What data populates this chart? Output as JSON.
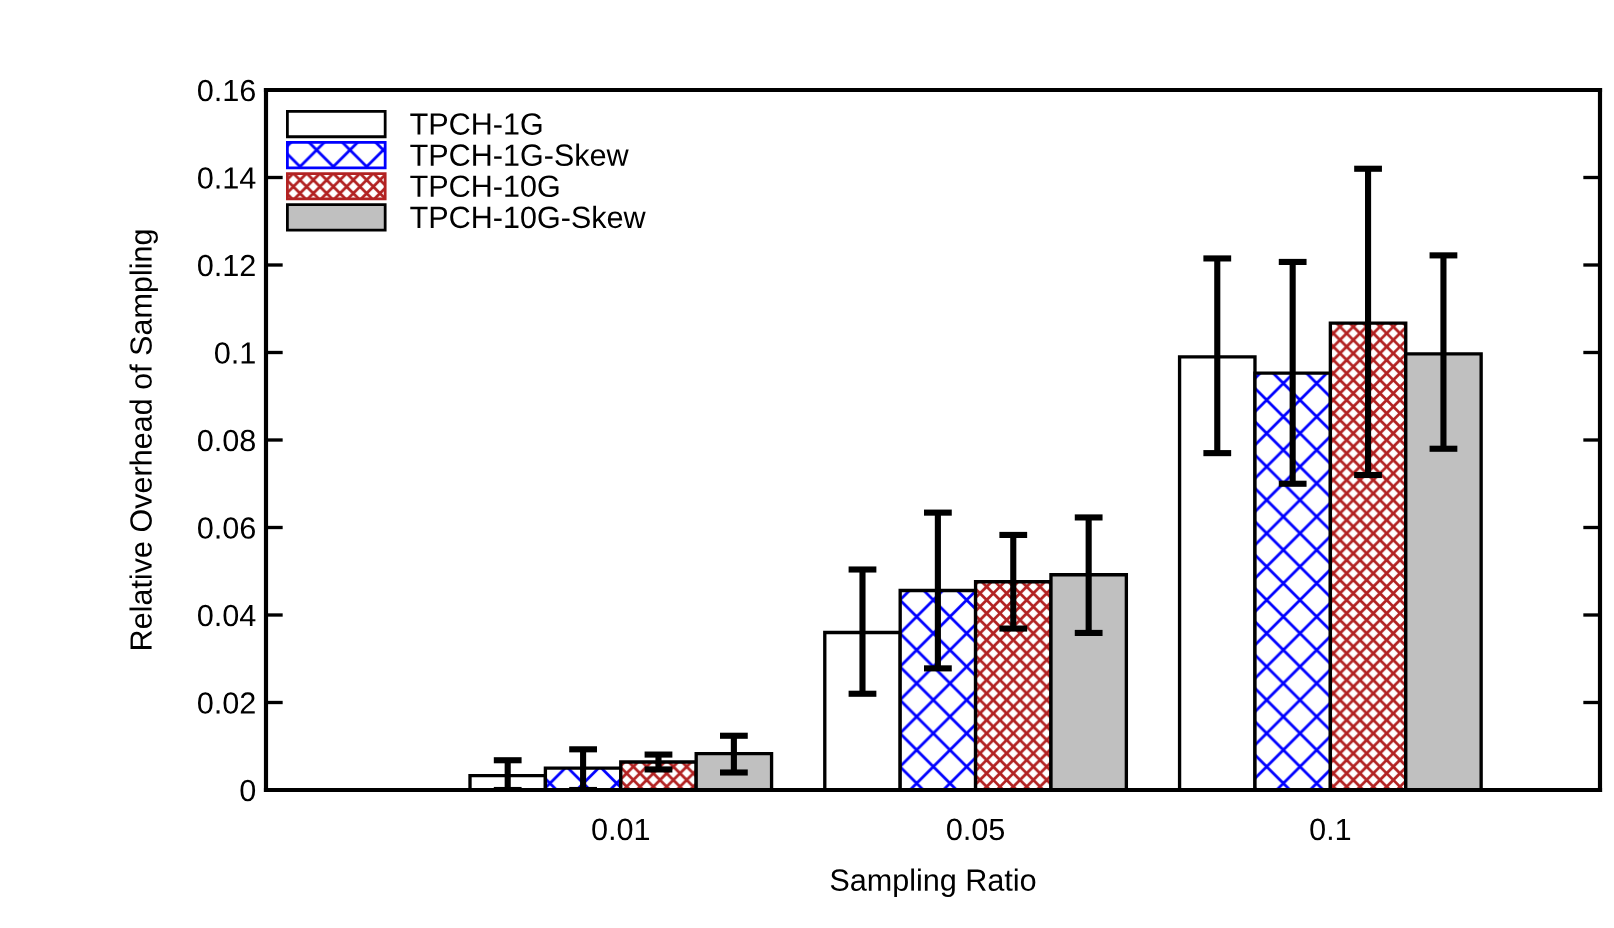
{
  "chart_data": {
    "type": "bar",
    "xlabel": "Sampling Ratio",
    "ylabel": "Relative Overhead of Sampling",
    "categories": [
      "0.01",
      "0.05",
      "0.1"
    ],
    "series": [
      {
        "name": "TPCH-1G",
        "color": "#ffffff",
        "values": [
          0.0033,
          0.036,
          0.099
        ],
        "errors": [
          [
            0,
            0.0068
          ],
          [
            0.022,
            0.0504
          ],
          [
            0.077,
            0.1215
          ]
        ]
      },
      {
        "name": "TPCH-1G-Skew",
        "color": "#0000ff",
        "values": [
          0.005,
          0.0456,
          0.0953
        ],
        "errors": [
          [
            0,
            0.0093
          ],
          [
            0.0278,
            0.0634
          ],
          [
            0.07,
            0.1207
          ]
        ]
      },
      {
        "name": "TPCH-10G",
        "color": "#b22222",
        "values": [
          0.0064,
          0.0476,
          0.1067
        ],
        "errors": [
          [
            0.0047,
            0.0081
          ],
          [
            0.0369,
            0.0583
          ],
          [
            0.072,
            0.142
          ]
        ]
      },
      {
        "name": "TPCH-10G-Skew",
        "color": "#c0c0c0",
        "values": [
          0.0083,
          0.0492,
          0.0997
        ],
        "errors": [
          [
            0.004,
            0.0124
          ],
          [
            0.0359,
            0.0623
          ],
          [
            0.078,
            0.1222
          ]
        ]
      }
    ],
    "ylim": [
      0,
      0.16
    ],
    "yticks": [
      {
        "value": 0,
        "label": "0"
      },
      0.02,
      0.04,
      0.06,
      0.08,
      {
        "value": 0.1,
        "label": "0.1"
      },
      0.12,
      0.14,
      0.16
    ],
    "grid": false,
    "legend": "top left"
  }
}
